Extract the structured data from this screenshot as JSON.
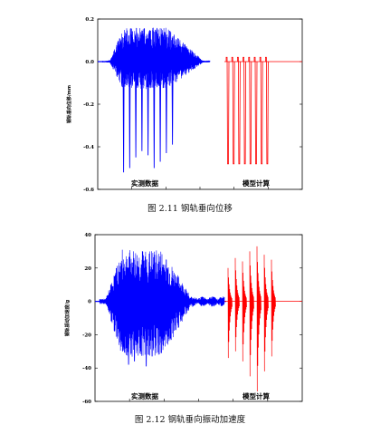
{
  "chart_data": [
    {
      "type": "line",
      "caption": "图 2.11  钢轨垂向位移",
      "ylabel": "钢轨垂向位移/mm",
      "xlabel": "",
      "ylim": [
        -0.6,
        0.2
      ],
      "yticks": [
        "0.2",
        "0.0",
        "-0.2",
        "-0.4",
        "-0.6"
      ],
      "tick_values": [
        0.2,
        0.0,
        -0.2,
        -0.4,
        -0.6
      ],
      "annotations": [
        "实测数据",
        "模型计算"
      ],
      "series": [
        {
          "color": "#0000ff",
          "kind": "measured",
          "x": [
            0,
            0.2
          ],
          "envelope_max": 0.16,
          "envelope_min": -0.52,
          "spike_values": [
            -0.52,
            -0.5,
            -0.45,
            -0.42,
            -0.44,
            -0.5,
            -0.47,
            -0.43,
            -0.39
          ]
        },
        {
          "color": "#ff0000",
          "kind": "model",
          "baseline": 0.0,
          "pulse_top": 0.02,
          "pulse_bottom": -0.48,
          "pulse_count": 8
        }
      ]
    },
    {
      "type": "line",
      "caption": "图 2.12  钢轨垂向振动加速度",
      "ylabel": "钢轨振动加速度/g",
      "xlabel": "",
      "ylim": [
        -60,
        40
      ],
      "yticks": [
        "40",
        "20",
        "0",
        "-20",
        "-40",
        "-60"
      ],
      "tick_values": [
        40,
        20,
        0,
        -20,
        -40,
        -60
      ],
      "annotations": [
        "实测数据",
        "模型计算"
      ],
      "series": [
        {
          "color": "#0000ff",
          "kind": "measured",
          "envelope_max": 31,
          "envelope_min": -39,
          "spike_values": [
            -30,
            -38,
            -36,
            -28,
            -39,
            -33,
            -25,
            -22
          ]
        },
        {
          "color": "#ff0000",
          "kind": "model",
          "baseline": 0.0,
          "pulse_max": [
            20,
            26,
            24,
            30,
            33,
            28,
            25
          ],
          "pulse_min": [
            -34,
            -30,
            -36,
            -45,
            -54,
            -42,
            -33
          ]
        }
      ]
    }
  ]
}
